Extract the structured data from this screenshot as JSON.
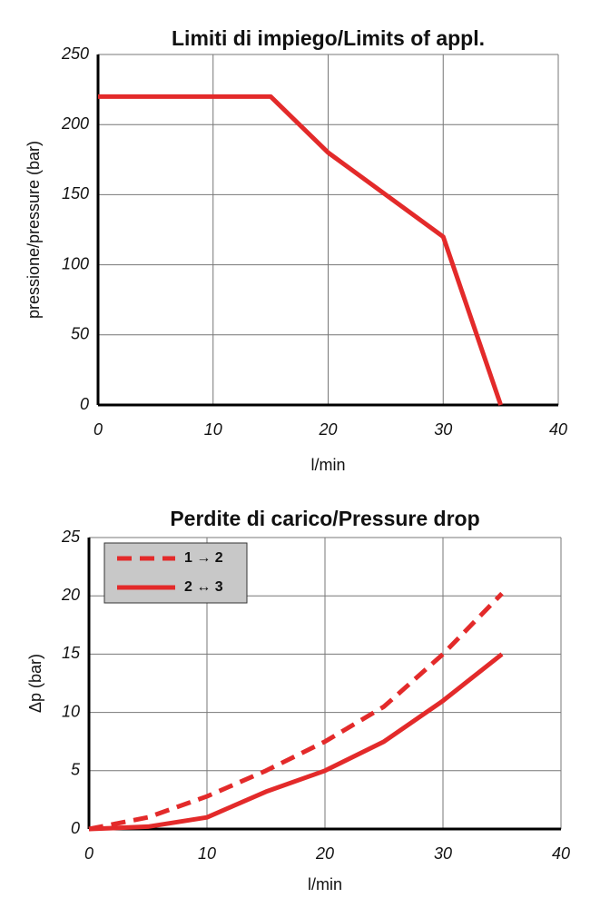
{
  "chart_data": [
    {
      "type": "line",
      "title": "Limiti di impiego/Limits of appl.",
      "x_label": "l/min",
      "y_label": "pressione/pressure (bar)",
      "xlim": [
        0,
        40
      ],
      "xticks": [
        0,
        10,
        20,
        30,
        40
      ],
      "ylim": [
        0,
        250
      ],
      "yticks": [
        0,
        50,
        100,
        150,
        200,
        250
      ],
      "grid": true,
      "series": [
        {
          "name": null,
          "color": "#e32a2a",
          "style": "solid",
          "x": [
            0,
            15,
            20,
            30,
            35
          ],
          "values": [
            220,
            220,
            180,
            120,
            0
          ]
        }
      ]
    },
    {
      "type": "line",
      "title": "Perdite di carico/Pressure drop",
      "x_label": "l/min",
      "y_label": "Δp (bar)",
      "xlim": [
        0,
        40
      ],
      "xticks": [
        0,
        10,
        20,
        30,
        40
      ],
      "ylim": [
        0,
        25
      ],
      "yticks": [
        0,
        5,
        10,
        15,
        20,
        25
      ],
      "grid": true,
      "legend": "upper left",
      "series": [
        {
          "name": "1 → 2",
          "color": "#e32a2a",
          "style": "dashed",
          "x": [
            0,
            5,
            10,
            15,
            20,
            25,
            30,
            35
          ],
          "values": [
            0,
            1,
            2.8,
            5,
            7.5,
            10.5,
            15,
            20.2
          ]
        },
        {
          "name": "2 ↔ 3",
          "color": "#e32a2a",
          "style": "solid",
          "x": [
            0,
            5,
            10,
            15,
            20,
            25,
            30,
            35
          ],
          "values": [
            0,
            0.2,
            1,
            3.2,
            5,
            7.5,
            11,
            15
          ]
        }
      ]
    }
  ]
}
